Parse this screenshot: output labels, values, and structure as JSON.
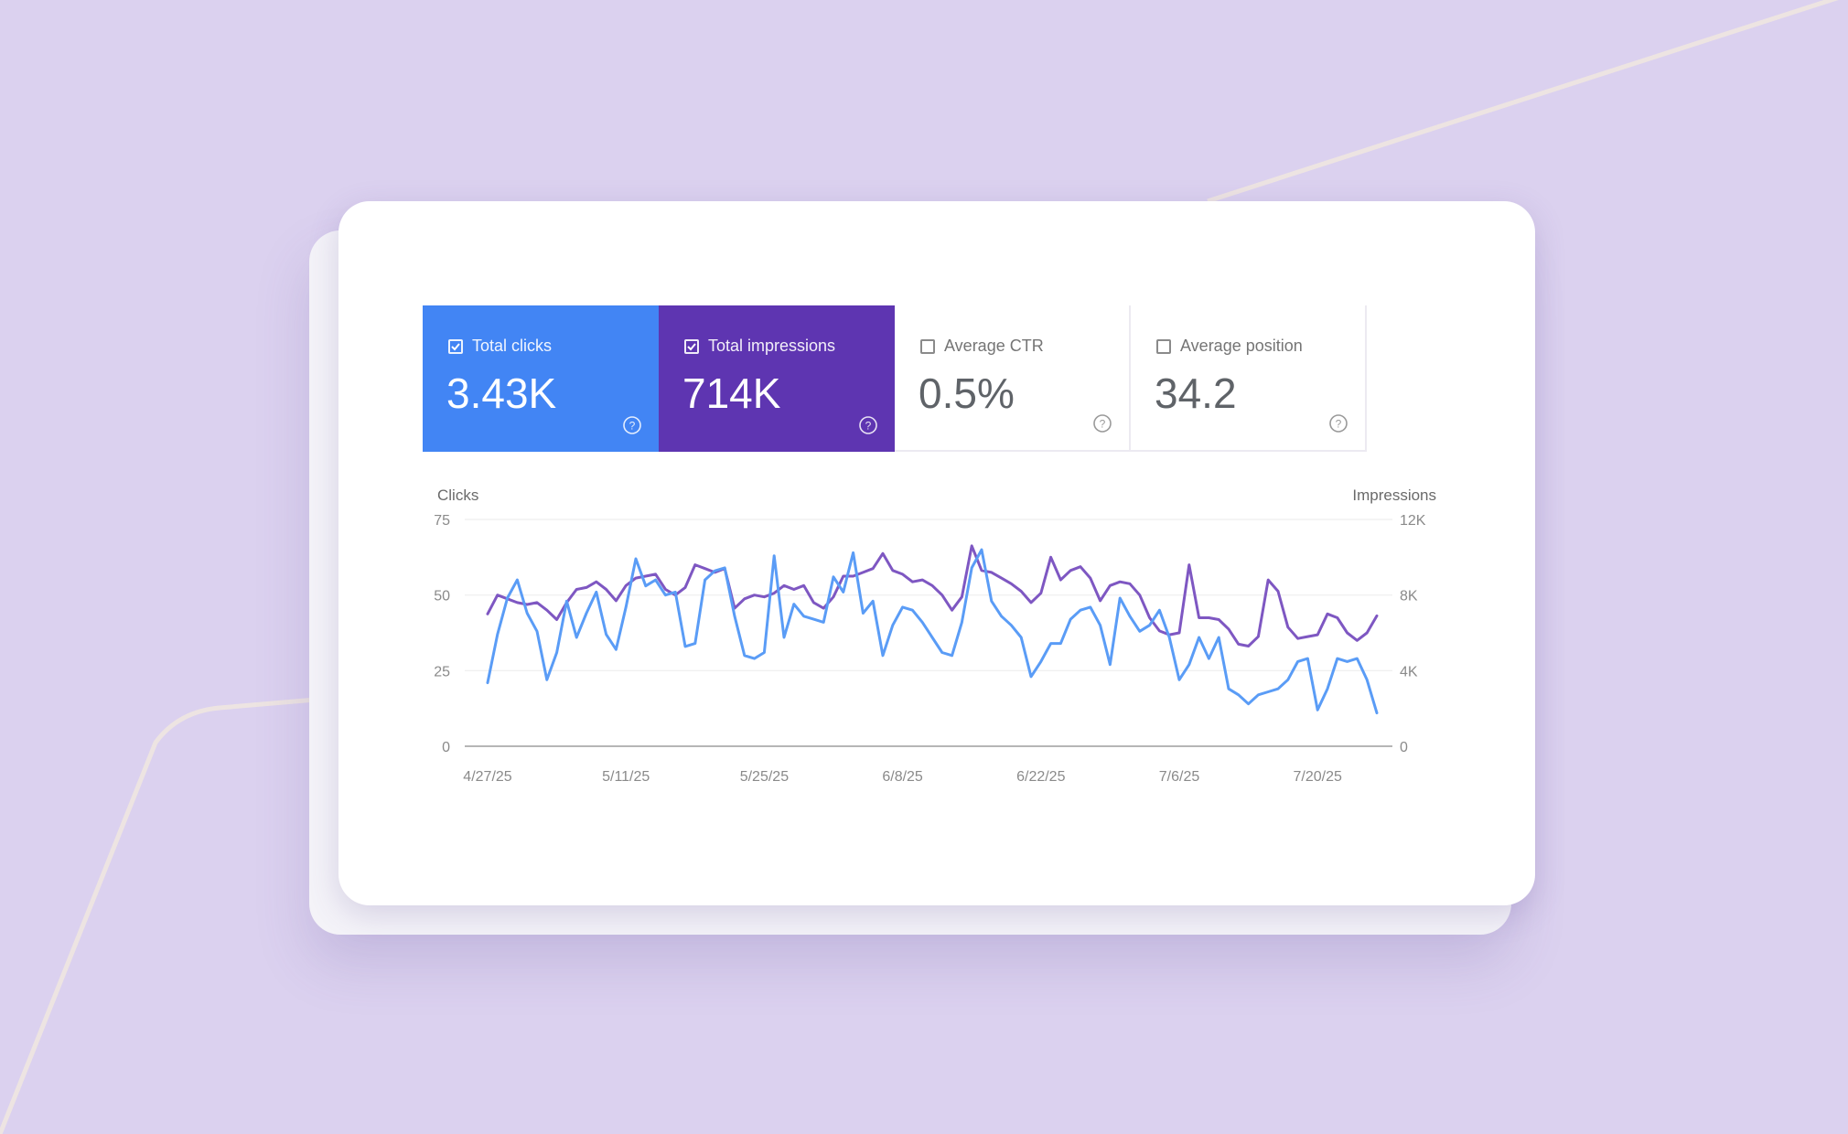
{
  "colors": {
    "background": "#dbd1ef",
    "clicks": "#4285f4",
    "impressions": "#5e35b1",
    "clicks_line": "#5a9cf6",
    "impressions_line": "#7e57c2",
    "decor_line": "#ede4e2"
  },
  "metrics": [
    {
      "label": "Total clicks",
      "value": "3.43K",
      "checked": true,
      "icon": "help-circle-icon"
    },
    {
      "label": "Total impressions",
      "value": "714K",
      "checked": true,
      "icon": "help-circle-icon"
    },
    {
      "label": "Average CTR",
      "value": "0.5%",
      "checked": false,
      "icon": "help-circle-icon"
    },
    {
      "label": "Average position",
      "value": "34.2",
      "checked": false,
      "icon": "help-circle-icon"
    }
  ],
  "chart_data": {
    "type": "line",
    "left_axis_label": "Clicks",
    "right_axis_label": "Impressions",
    "left_ylim": [
      0,
      75
    ],
    "right_ylim": [
      0,
      12000
    ],
    "left_ticks": [
      "0",
      "25",
      "50",
      "75"
    ],
    "right_ticks": [
      "0",
      "4K",
      "8K",
      "12K"
    ],
    "x_tick_labels": [
      "4/27/25",
      "5/11/25",
      "5/25/25",
      "6/8/25",
      "6/22/25",
      "7/6/25",
      "7/20/25"
    ],
    "x_tick_index": [
      0,
      14,
      28,
      42,
      56,
      70,
      84
    ],
    "grid": true,
    "series": [
      {
        "name": "Clicks",
        "axis": "left",
        "values": [
          21,
          37,
          49,
          55,
          44,
          38,
          22,
          31,
          48,
          36,
          44,
          51,
          37,
          32,
          46,
          62,
          53,
          55,
          50,
          51,
          33,
          34,
          55,
          58,
          59,
          43,
          30,
          29,
          31,
          63,
          36,
          47,
          43,
          42,
          41,
          56,
          51,
          64,
          44,
          48,
          30,
          40,
          46,
          45,
          41,
          36,
          31,
          30,
          41,
          59,
          65,
          48,
          43,
          40,
          36,
          23,
          28,
          34,
          34,
          42,
          45,
          46,
          40,
          27,
          49,
          43,
          38,
          40,
          45,
          36,
          22,
          27,
          36,
          29,
          36,
          19,
          17,
          14,
          17,
          18,
          19,
          22,
          28,
          29,
          12,
          19,
          29,
          28,
          29,
          22,
          11
        ]
      },
      {
        "name": "Impressions",
        "axis": "right",
        "values": [
          7000,
          8000,
          7800,
          7600,
          7500,
          7600,
          7200,
          6700,
          7600,
          8300,
          8400,
          8700,
          8300,
          7700,
          8500,
          8900,
          9000,
          9100,
          8300,
          8000,
          8400,
          9600,
          9400,
          9200,
          9400,
          7300,
          7800,
          8000,
          7900,
          8100,
          8500,
          8300,
          8500,
          7600,
          7300,
          7900,
          9000,
          9000,
          9200,
          9400,
          10200,
          9300,
          9100,
          8700,
          8800,
          8500,
          8000,
          7200,
          7900,
          10600,
          9300,
          9200,
          8900,
          8600,
          8200,
          7600,
          8100,
          10000,
          8800,
          9300,
          9500,
          8900,
          7700,
          8500,
          8700,
          8600,
          8000,
          6800,
          6100,
          5900,
          6000,
          9600,
          6800,
          6800,
          6700,
          6200,
          5400,
          5300,
          5800,
          8800,
          8200,
          6300,
          5700,
          5800,
          5900,
          7000,
          6800,
          6000,
          5600,
          6000,
          6900
        ]
      }
    ]
  }
}
